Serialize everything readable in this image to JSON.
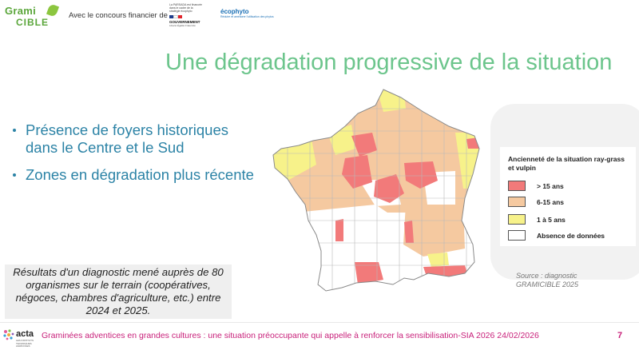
{
  "header": {
    "logo_line1": "Grami",
    "logo_line2": "CIBLE",
    "funding_text": "Avec le concours financier de",
    "gouv_small": "La PARSADA est financée dans le cadre de la stratégie écophyto",
    "gouv_name": "GOUVERNEMENT",
    "gouv_sub": "Liberté Égalité Fraternité",
    "ecophyto_name": "écophyto",
    "ecophyto_sub": "Réduire et améliorer l'utilisation des phytos"
  },
  "title": "Une dégradation progressive de la situation",
  "bullets": [
    "Présence de foyers historiques dans le Centre et le Sud",
    "Zones en dégradation plus récente"
  ],
  "results_text": "Résultats d'un diagnostic mené auprès de 80 organismes sur le terrain (coopératives, négoces, chambres d'agriculture, etc.) entre 2024 et 2025.",
  "legend": {
    "title": "Ancienneté de la situation ray-grass et vulpin",
    "items": [
      {
        "label": "> 15 ans",
        "color": "#f27a7a"
      },
      {
        "label": "6-15 ans",
        "color": "#f5c9a0"
      },
      {
        "label": "1 à 5 ans",
        "color": "#f7f28a"
      },
      {
        "label": "Absence de données",
        "color": "#ffffff"
      }
    ]
  },
  "source": {
    "line1": "Source : diagnostic",
    "line2": "GRAMICIBLE 2025"
  },
  "footer": {
    "acta_name": "acta",
    "acta_sub": "LES INSTITUTS TECHNIQUES AGRICOLES",
    "text": "Graminées adventices en grandes cultures : une situation préoccupante qui appelle à renforcer la sensibilisation-SIA  2026 24/02/2026",
    "page": "7"
  },
  "colors": {
    "title": "#6cc58c",
    "bullet": "#2c83a6",
    "footer": "#c8207a",
    "red": "#f27a7a",
    "orange": "#f5c9a0",
    "yellow": "#f7f28a"
  }
}
